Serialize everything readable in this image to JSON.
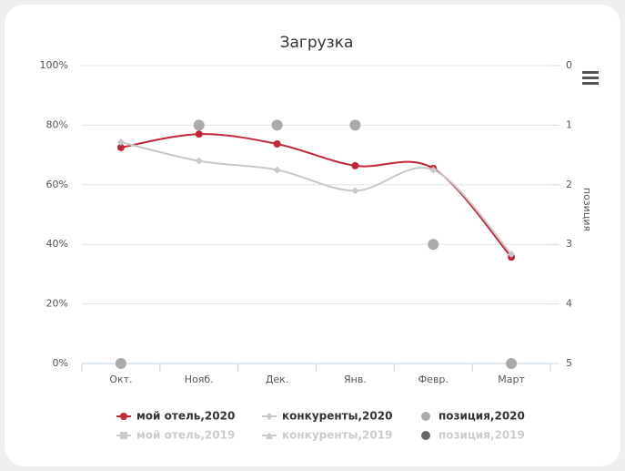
{
  "chart_data": {
    "type": "line",
    "title": "Загрузка",
    "categories": [
      "Окт.",
      "Нояб.",
      "Дек.",
      "Янв.",
      "Февр.",
      "Март"
    ],
    "ylim": [
      0,
      100
    ],
    "yticks": [
      {
        "value": 0,
        "label": "0%"
      },
      {
        "value": 20,
        "label": "20%"
      },
      {
        "value": 40,
        "label": "40%"
      },
      {
        "value": 60,
        "label": "60%"
      },
      {
        "value": 80,
        "label": "80%"
      },
      {
        "value": 100,
        "label": "100%"
      }
    ],
    "y2lim": [
      5,
      0
    ],
    "y2ticks": [
      0,
      1,
      2,
      3,
      4,
      5
    ],
    "y2label": "позиция",
    "grid": true,
    "series": [
      {
        "name": "мой отель,2020",
        "type": "line",
        "marker": "circle",
        "color": "#c0283a",
        "visible": true,
        "values": [
          72.5,
          77,
          73.7,
          66.4,
          65.5,
          35.7
        ]
      },
      {
        "name": "конкуренты,2020",
        "type": "line",
        "marker": "diamond",
        "color": "#c8c8c8",
        "visible": true,
        "values": [
          74.3,
          68,
          65,
          58,
          65,
          36.7
        ]
      },
      {
        "name": "позиция,2020",
        "type": "scatter",
        "marker": "circle",
        "color": "#aaaaaa",
        "axis": "y2",
        "visible": true,
        "values": [
          5,
          1,
          1,
          1,
          3,
          5
        ]
      },
      {
        "name": "мой отель,2019",
        "type": "line",
        "marker": "square",
        "color": "#cccccc",
        "visible": false,
        "values": [
          null,
          null,
          null,
          null,
          null,
          null
        ]
      },
      {
        "name": "конкуренты,2019",
        "type": "line",
        "marker": "triangle",
        "color": "#cccccc",
        "visible": false,
        "values": [
          null,
          null,
          null,
          null,
          null,
          null
        ]
      },
      {
        "name": "позиция,2019",
        "type": "scatter",
        "marker": "circle",
        "color": "#666666",
        "axis": "y2",
        "visible": false,
        "values": [
          null,
          null,
          null,
          null,
          null,
          null
        ]
      }
    ]
  }
}
